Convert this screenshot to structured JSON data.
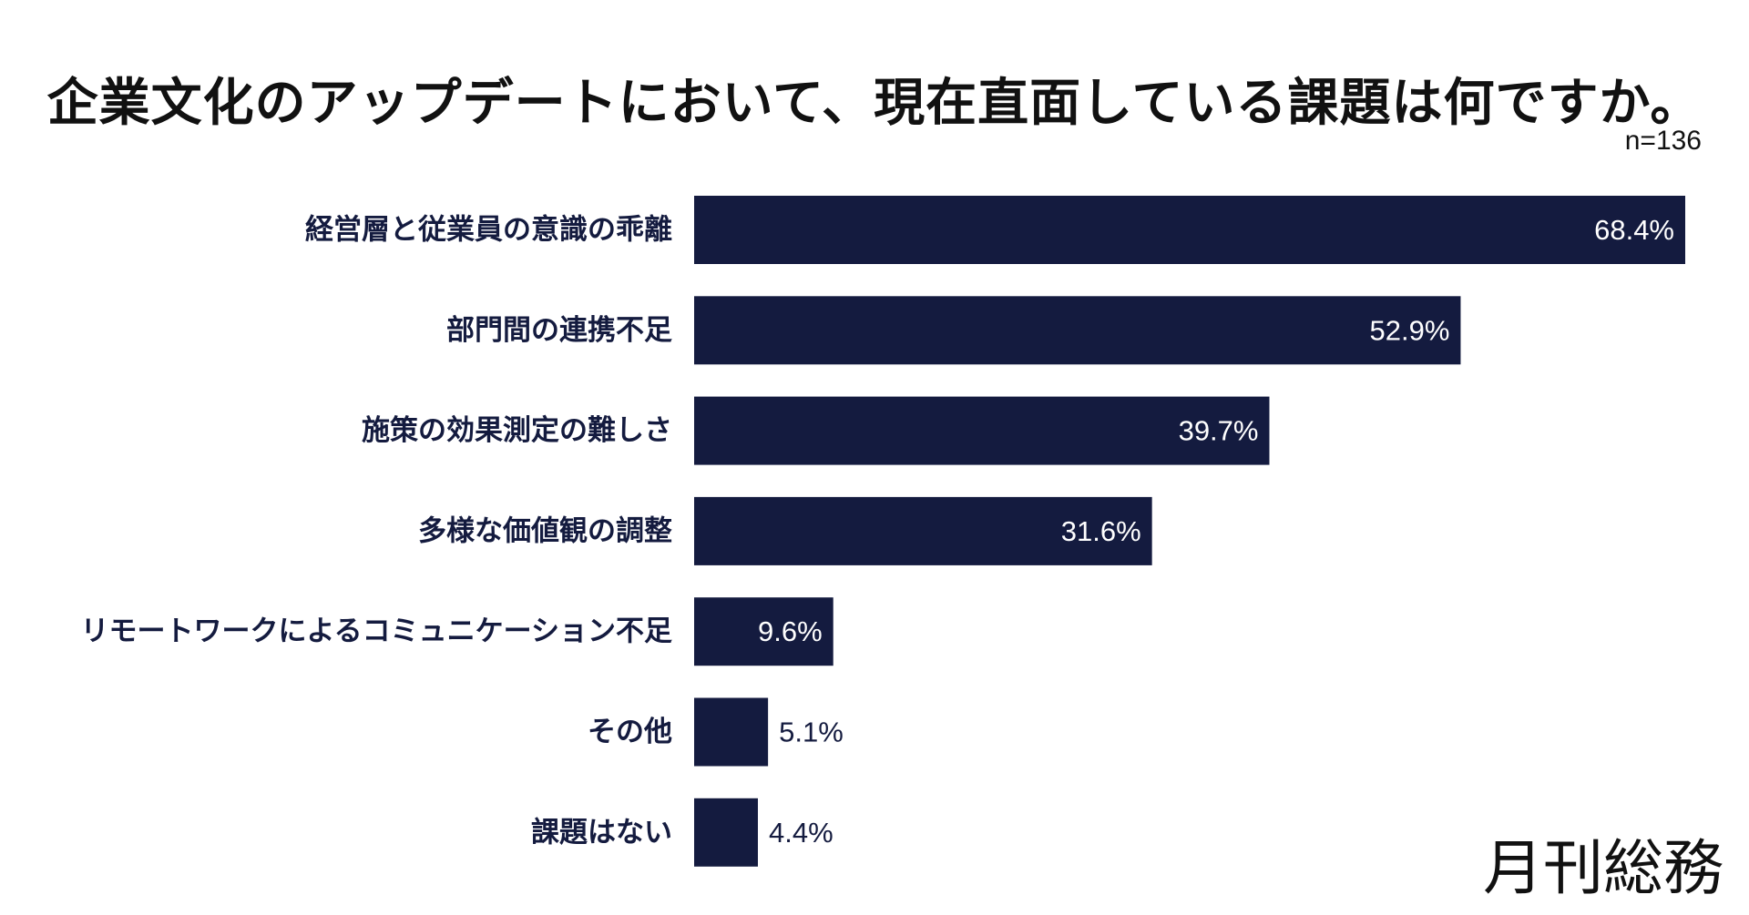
{
  "chart_data": {
    "type": "bar",
    "orientation": "horizontal",
    "title": "企業文化のアップデートにおいて、現在直面している課題は何ですか。",
    "note": "n=136",
    "categories": [
      "経営層と従業員の意識の乖離",
      "部門間の連携不足",
      "施策の効果測定の難しさ",
      "多様な価値観の調整",
      "リモートワークによるコミュニケーション不足",
      "その他",
      "課題はない"
    ],
    "values": [
      68.4,
      52.9,
      39.7,
      31.6,
      9.6,
      5.1,
      4.4
    ],
    "value_labels": [
      "68.4%",
      "52.9%",
      "39.7%",
      "31.6%",
      "9.6%",
      "5.1%",
      "4.4%"
    ],
    "xlim": [
      0,
      68.4
    ],
    "grid": false,
    "bar_color": "#141b3f",
    "label_color_inside": "#ffffff",
    "label_color_outside": "#141b3f"
  },
  "brand": {
    "name": "月刊総務"
  }
}
